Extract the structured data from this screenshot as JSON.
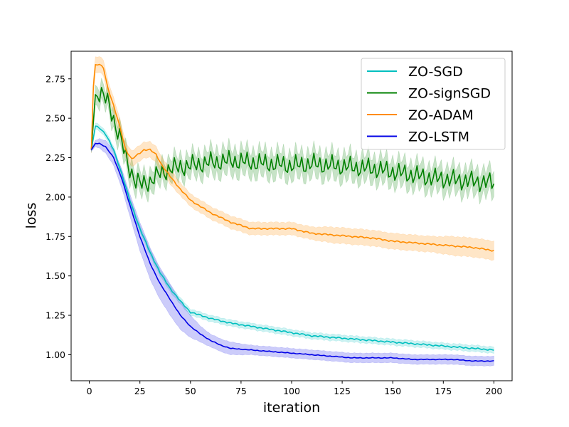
{
  "chart_data": {
    "type": "line",
    "xlabel": "iteration",
    "ylabel": "loss",
    "xlim": [
      -9,
      209
    ],
    "ylim": [
      0.835,
      2.925
    ],
    "xticks": [
      0,
      25,
      50,
      75,
      100,
      125,
      150,
      175,
      200
    ],
    "yticks": [
      1.0,
      1.25,
      1.5,
      1.75,
      2.0,
      2.25,
      2.5,
      2.75
    ],
    "ytick_labels": [
      "1.00",
      "1.25",
      "1.50",
      "1.75",
      "2.00",
      "2.25",
      "2.50",
      "2.75"
    ],
    "grid": false,
    "legend_position": "upper-right",
    "series": [
      {
        "name": "ZO-SGD",
        "color": "#00bfbf",
        "band_opacity": 0.2,
        "x": [
          1,
          3,
          5,
          8,
          12,
          16,
          20,
          25,
          30,
          35,
          40,
          45,
          50,
          55,
          60,
          70,
          80,
          90,
          100,
          110,
          120,
          130,
          140,
          150,
          160,
          170,
          180,
          190,
          200
        ],
        "y": [
          2.3,
          2.45,
          2.44,
          2.4,
          2.3,
          2.15,
          1.98,
          1.8,
          1.65,
          1.52,
          1.42,
          1.34,
          1.27,
          1.25,
          1.23,
          1.2,
          1.18,
          1.16,
          1.14,
          1.12,
          1.11,
          1.1,
          1.09,
          1.08,
          1.07,
          1.06,
          1.05,
          1.04,
          1.03
        ],
        "band": [
          0.01,
          0.02,
          0.02,
          0.02,
          0.02,
          0.02,
          0.02,
          0.02,
          0.02,
          0.02,
          0.02,
          0.02,
          0.02,
          0.02,
          0.02,
          0.02,
          0.02,
          0.02,
          0.02,
          0.02,
          0.02,
          0.02,
          0.02,
          0.02,
          0.02,
          0.02,
          0.02,
          0.02,
          0.02
        ],
        "wiggle": 0.004
      },
      {
        "name": "ZO-signSGD",
        "color": "#008000",
        "band_opacity": 0.22,
        "x": [
          1,
          3,
          5,
          7,
          10,
          13,
          16,
          18,
          20,
          23,
          26,
          30,
          35,
          40,
          50,
          60,
          70,
          80,
          90,
          100,
          110,
          120,
          130,
          140,
          150,
          160,
          170,
          180,
          190,
          200
        ],
        "y": [
          2.3,
          2.65,
          2.66,
          2.64,
          2.58,
          2.45,
          2.35,
          2.25,
          2.18,
          2.1,
          2.08,
          2.1,
          2.15,
          2.18,
          2.2,
          2.22,
          2.23,
          2.22,
          2.21,
          2.2,
          2.21,
          2.2,
          2.19,
          2.18,
          2.16,
          2.14,
          2.12,
          2.11,
          2.1,
          2.09
        ],
        "band": [
          0.02,
          0.06,
          0.06,
          0.06,
          0.06,
          0.07,
          0.07,
          0.07,
          0.07,
          0.07,
          0.07,
          0.07,
          0.07,
          0.07,
          0.07,
          0.08,
          0.08,
          0.08,
          0.08,
          0.08,
          0.08,
          0.08,
          0.08,
          0.08,
          0.08,
          0.08,
          0.08,
          0.08,
          0.08,
          0.08
        ],
        "wiggle": 0.05
      },
      {
        "name": "ZO-ADAM",
        "color": "#ff8c00",
        "band_opacity": 0.22,
        "x": [
          1,
          2,
          3,
          5,
          7,
          9,
          12,
          15,
          18,
          21,
          24,
          27,
          30,
          33,
          36,
          40,
          45,
          50,
          55,
          60,
          70,
          80,
          90,
          100,
          110,
          120,
          130,
          140,
          150,
          160,
          170,
          180,
          190,
          200
        ],
        "y": [
          2.3,
          2.7,
          2.84,
          2.84,
          2.82,
          2.7,
          2.58,
          2.45,
          2.3,
          2.24,
          2.27,
          2.3,
          2.3,
          2.27,
          2.2,
          2.13,
          2.05,
          1.98,
          1.94,
          1.9,
          1.84,
          1.8,
          1.8,
          1.8,
          1.77,
          1.76,
          1.75,
          1.74,
          1.72,
          1.71,
          1.7,
          1.69,
          1.68,
          1.66
        ],
        "band": [
          0.02,
          0.05,
          0.05,
          0.05,
          0.05,
          0.05,
          0.05,
          0.05,
          0.05,
          0.05,
          0.05,
          0.05,
          0.05,
          0.05,
          0.05,
          0.05,
          0.04,
          0.04,
          0.04,
          0.04,
          0.04,
          0.04,
          0.04,
          0.04,
          0.04,
          0.05,
          0.05,
          0.05,
          0.05,
          0.05,
          0.05,
          0.06,
          0.06,
          0.06
        ],
        "wiggle": 0.004
      },
      {
        "name": "ZO-LSTM",
        "color": "#0000e6",
        "band_opacity": 0.2,
        "x": [
          1,
          3,
          5,
          8,
          12,
          16,
          20,
          25,
          30,
          35,
          40,
          45,
          50,
          55,
          60,
          65,
          70,
          80,
          90,
          100,
          110,
          120,
          130,
          140,
          150,
          160,
          170,
          180,
          190,
          200
        ],
        "y": [
          2.3,
          2.34,
          2.34,
          2.32,
          2.25,
          2.12,
          1.95,
          1.75,
          1.58,
          1.45,
          1.35,
          1.25,
          1.18,
          1.13,
          1.09,
          1.06,
          1.04,
          1.03,
          1.02,
          1.01,
          1.0,
          0.99,
          0.98,
          0.98,
          0.98,
          0.97,
          0.97,
          0.97,
          0.96,
          0.96
        ],
        "band": [
          0.01,
          0.02,
          0.03,
          0.04,
          0.05,
          0.06,
          0.07,
          0.09,
          0.1,
          0.1,
          0.1,
          0.09,
          0.07,
          0.05,
          0.04,
          0.04,
          0.04,
          0.03,
          0.03,
          0.03,
          0.03,
          0.03,
          0.03,
          0.03,
          0.03,
          0.03,
          0.03,
          0.03,
          0.03,
          0.03
        ],
        "wiggle": 0.002
      }
    ]
  }
}
